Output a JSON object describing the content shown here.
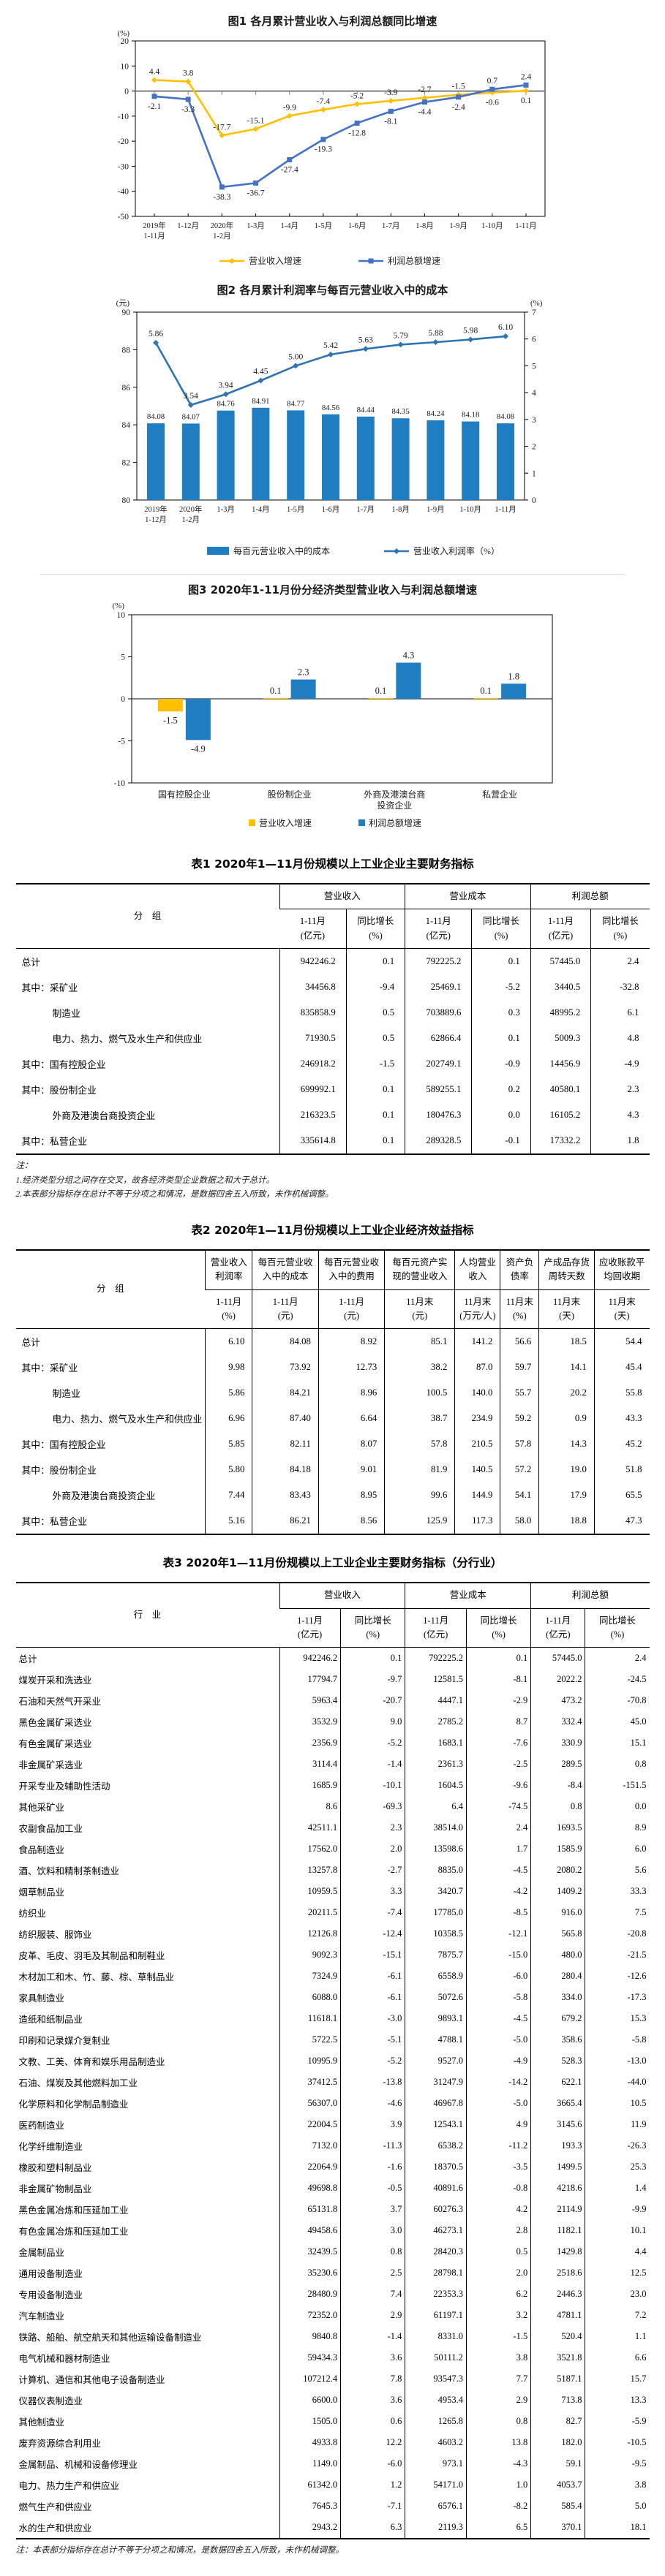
{
  "figure1": {
    "title": "图1 各月累计营业收入与利润总额同比增速",
    "unit_label": "(%)",
    "type": "line",
    "categories": [
      "2019年\n1-11月",
      "1-12月",
      "2020年\n1-2月",
      "1-3月",
      "1-4月",
      "1-5月",
      "1-6月",
      "1-7月",
      "1-8月",
      "1-9月",
      "1-10月",
      "1-11月"
    ],
    "yticks": [
      20,
      10,
      0,
      -10,
      -20,
      -30,
      -40,
      -50
    ],
    "ylim": [
      -50,
      20
    ],
    "series": [
      {
        "name": "营业收入增速",
        "color": "#FFC000",
        "marker": "diamond",
        "values": [
          4.4,
          3.8,
          -17.7,
          -15.1,
          -9.9,
          -7.4,
          -5.2,
          -3.9,
          -2.7,
          -1.5,
          -0.6,
          0.1
        ]
      },
      {
        "name": "利润总额增速",
        "color": "#4472C4",
        "marker": "square",
        "values": [
          -2.1,
          -3.3,
          -38.3,
          -36.7,
          -27.4,
          -19.3,
          -12.8,
          -8.1,
          -4.4,
          -2.4,
          0.7,
          2.4
        ]
      }
    ]
  },
  "figure2": {
    "title": "图2 各月累计利润率与每百元营业收入中的成本",
    "left_unit": "(元)",
    "right_unit": "(%)",
    "type": "bar+line",
    "categories": [
      "2019年\n1-12月",
      "2020年\n1-2月",
      "1-3月",
      "1-4月",
      "1-5月",
      "1-6月",
      "1-7月",
      "1-8月",
      "1-9月",
      "1-10月",
      "1-11月"
    ],
    "left_ticks": [
      90,
      88,
      86,
      84,
      82,
      80
    ],
    "right_ticks": [
      7,
      6,
      5,
      4,
      3,
      2,
      1,
      0
    ],
    "bar_series": {
      "name": "每百元营业收入中的成本",
      "color": "#1F7EC2",
      "values": [
        84.08,
        84.07,
        84.76,
        84.91,
        84.77,
        84.56,
        84.44,
        84.35,
        84.24,
        84.18,
        84.08
      ]
    },
    "line_series": {
      "name": "营业收入利润率（%）",
      "color": "#2E74B5",
      "values": [
        5.86,
        3.54,
        3.94,
        4.45,
        5.0,
        5.42,
        5.63,
        5.79,
        5.88,
        5.98,
        6.1
      ],
      "labels": [
        "5.86",
        "3.54",
        "3.94",
        "4.45",
        "5.00",
        "5.42",
        "5.63",
        "5.79",
        "5.88",
        "5.98",
        "6.10"
      ]
    }
  },
  "figure3": {
    "title": "图3 2020年1-11月份分经济类型营业收入与利润总额增速",
    "unit_label": "(%)",
    "type": "grouped-bar",
    "categories": [
      "国有控股企业",
      "股份制企业",
      "外商及港澳台商\n投资企业",
      "私营企业"
    ],
    "yticks": [
      10,
      5,
      0,
      -5,
      -10
    ],
    "series": [
      {
        "name": "营业收入增速",
        "color": "#FFC000",
        "values": [
          -1.5,
          0.1,
          0.1,
          0.1
        ]
      },
      {
        "name": "利润总额增速",
        "color": "#1F7EC2",
        "values": [
          -4.9,
          2.3,
          4.3,
          1.8
        ]
      }
    ]
  },
  "table1": {
    "title": "表1 2020年1—11月份规模以上工业企业主要财务指标",
    "corner_label": "分　组",
    "columns": [
      {
        "label": "营业收入",
        "subs": [
          "1-11月\n(亿元)",
          "同比增长\n(%)"
        ]
      },
      {
        "label": "营业成本",
        "subs": [
          "1-11月\n(亿元)",
          "同比增长\n(%)"
        ]
      },
      {
        "label": "利润总额",
        "subs": [
          "1-11月\n(亿元)",
          "同比增长\n(%)"
        ]
      }
    ],
    "rows": [
      {
        "label": "总计",
        "indent": 0,
        "values": [
          "942246.2",
          "0.1",
          "792225.2",
          "0.1",
          "57445.0",
          "2.4"
        ]
      },
      {
        "label": "其中：采矿业",
        "indent": 0,
        "values": [
          "34456.8",
          "-9.4",
          "25469.1",
          "-5.2",
          "3440.5",
          "-32.8"
        ]
      },
      {
        "label": "制造业",
        "indent": 1,
        "values": [
          "835858.9",
          "0.5",
          "703889.6",
          "0.3",
          "48995.2",
          "6.1"
        ]
      },
      {
        "label": "电力、热力、燃气及水生产和供应业",
        "indent": 1,
        "values": [
          "71930.5",
          "0.5",
          "62866.4",
          "0.1",
          "5009.3",
          "4.8"
        ]
      },
      {
        "label": "其中：国有控股企业",
        "indent": 0,
        "values": [
          "246918.2",
          "-1.5",
          "202749.1",
          "-0.9",
          "14456.9",
          "-4.9"
        ]
      },
      {
        "label": "其中：股份制企业",
        "indent": 0,
        "values": [
          "699992.1",
          "0.1",
          "589255.1",
          "0.2",
          "40580.1",
          "2.3"
        ]
      },
      {
        "label": "外商及港澳台商投资企业",
        "indent": 1,
        "values": [
          "216323.5",
          "0.1",
          "180476.3",
          "0.0",
          "16105.2",
          "4.3"
        ]
      },
      {
        "label": "其中：私营企业",
        "indent": 0,
        "values": [
          "335614.8",
          "0.1",
          "289328.5",
          "-0.1",
          "17332.2",
          "1.8"
        ]
      }
    ],
    "notes": [
      "注：",
      "1.经济类型分组之间存在交叉，故各经济类型企业数据之和大于总计。",
      "2.本表部分指标存在总计不等于分项之和情况，是数据四舍五入所致，未作机械调整。"
    ]
  },
  "table2": {
    "title": "表2 2020年1—11月份规模以上工业企业经济效益指标",
    "corner_label": "分　组",
    "columns": [
      {
        "label": "营业收入利润率",
        "subs": [
          "1-11月\n(%)"
        ]
      },
      {
        "label": "每百元营业收入中的成本",
        "subs": [
          "1-11月\n(元)"
        ]
      },
      {
        "label": "每百元营业收入中的费用",
        "subs": [
          "1-11月\n(元)"
        ]
      },
      {
        "label": "每百元资产实现的营业收入",
        "subs": [
          "11月末\n(元)"
        ]
      },
      {
        "label": "人均营业收入",
        "subs": [
          "11月末\n(万元/人)"
        ]
      },
      {
        "label": "资产负债率",
        "subs": [
          "11月末\n(%)"
        ]
      },
      {
        "label": "产成品存货周转天数",
        "subs": [
          "11月末\n(天)"
        ]
      },
      {
        "label": "应收账款平均回收期",
        "subs": [
          "11月末\n(天)"
        ]
      }
    ],
    "rows": [
      {
        "label": "总计",
        "indent": 0,
        "values": [
          "6.10",
          "84.08",
          "8.92",
          "85.1",
          "141.2",
          "56.6",
          "18.5",
          "54.4"
        ]
      },
      {
        "label": "其中：采矿业",
        "indent": 0,
        "values": [
          "9.98",
          "73.92",
          "12.73",
          "38.2",
          "87.0",
          "59.7",
          "14.1",
          "45.4"
        ]
      },
      {
        "label": "制造业",
        "indent": 1,
        "values": [
          "5.86",
          "84.21",
          "8.96",
          "100.5",
          "140.0",
          "55.7",
          "20.2",
          "55.8"
        ]
      },
      {
        "label": "电力、热力、燃气及水生产和供应业",
        "indent": 1,
        "values": [
          "6.96",
          "87.40",
          "6.64",
          "38.7",
          "234.9",
          "59.2",
          "0.9",
          "43.3"
        ]
      },
      {
        "label": "其中：国有控股企业",
        "indent": 0,
        "values": [
          "5.85",
          "82.11",
          "8.07",
          "57.8",
          "210.5",
          "57.8",
          "14.3",
          "45.2"
        ]
      },
      {
        "label": "其中：股份制企业",
        "indent": 0,
        "values": [
          "5.80",
          "84.18",
          "9.01",
          "81.9",
          "140.5",
          "57.2",
          "19.0",
          "51.8"
        ]
      },
      {
        "label": "外商及港澳台商投资企业",
        "indent": 1,
        "values": [
          "7.44",
          "83.43",
          "8.95",
          "99.6",
          "144.9",
          "54.1",
          "17.9",
          "65.5"
        ]
      },
      {
        "label": "其中：私营企业",
        "indent": 0,
        "values": [
          "5.16",
          "86.21",
          "8.56",
          "125.9",
          "117.3",
          "58.0",
          "18.8",
          "47.3"
        ]
      }
    ]
  },
  "table3": {
    "title": "表3 2020年1—11月份规模以上工业企业主要财务指标（分行业）",
    "corner_label": "行　业",
    "columns": [
      {
        "label": "营业收入",
        "subs": [
          "1-11月\n(亿元)",
          "同比增长\n(%)"
        ]
      },
      {
        "label": "营业成本",
        "subs": [
          "1-11月\n(亿元)",
          "同比增长\n(%)"
        ]
      },
      {
        "label": "利润总额",
        "subs": [
          "1-11月\n(亿元)",
          "同比增长\n(%)"
        ]
      }
    ],
    "rows": [
      {
        "label": "总计",
        "indent": 0,
        "values": [
          "942246.2",
          "0.1",
          "792225.2",
          "0.1",
          "57445.0",
          "2.4"
        ]
      },
      {
        "label": "煤炭开采和洗选业",
        "indent": 2,
        "values": [
          "17794.7",
          "-9.7",
          "12581.5",
          "-8.1",
          "2022.2",
          "-24.5"
        ]
      },
      {
        "label": "石油和天然气开采业",
        "indent": 2,
        "values": [
          "5963.4",
          "-20.7",
          "4447.1",
          "-2.9",
          "473.2",
          "-70.8"
        ]
      },
      {
        "label": "黑色金属矿采选业",
        "indent": 2,
        "values": [
          "3532.9",
          "9.0",
          "2785.2",
          "8.7",
          "332.4",
          "45.0"
        ]
      },
      {
        "label": "有色金属矿采选业",
        "indent": 2,
        "values": [
          "2356.9",
          "-5.2",
          "1683.1",
          "-7.6",
          "330.9",
          "15.1"
        ]
      },
      {
        "label": "非金属矿采选业",
        "indent": 2,
        "values": [
          "3114.4",
          "-1.4",
          "2361.3",
          "-2.5",
          "289.5",
          "0.8"
        ]
      },
      {
        "label": "开采专业及辅助性活动",
        "indent": 2,
        "values": [
          "1685.9",
          "-10.1",
          "1604.5",
          "-9.6",
          "-8.4",
          "-151.5"
        ]
      },
      {
        "label": "其他采矿业",
        "indent": 2,
        "values": [
          "8.6",
          "-69.3",
          "6.4",
          "-74.5",
          "0.8",
          "0.0"
        ]
      },
      {
        "label": "农副食品加工业",
        "indent": 2,
        "values": [
          "42511.1",
          "2.3",
          "38514.0",
          "2.4",
          "1693.5",
          "8.9"
        ]
      },
      {
        "label": "食品制造业",
        "indent": 2,
        "values": [
          "17562.0",
          "2.0",
          "13598.6",
          "1.7",
          "1585.9",
          "6.0"
        ]
      },
      {
        "label": "酒、饮料和精制茶制造业",
        "indent": 2,
        "values": [
          "13257.8",
          "-2.7",
          "8835.0",
          "-4.5",
          "2080.2",
          "5.6"
        ]
      },
      {
        "label": "烟草制品业",
        "indent": 2,
        "values": [
          "10959.5",
          "3.3",
          "3420.7",
          "-4.2",
          "1409.2",
          "33.3"
        ]
      },
      {
        "label": "纺织业",
        "indent": 2,
        "values": [
          "20211.5",
          "-7.4",
          "17785.0",
          "-8.5",
          "916.0",
          "7.5"
        ]
      },
      {
        "label": "纺织服装、服饰业",
        "indent": 2,
        "values": [
          "12126.8",
          "-12.4",
          "10358.5",
          "-12.1",
          "565.8",
          "-20.8"
        ]
      },
      {
        "label": "皮革、毛皮、羽毛及其制品和制鞋业",
        "indent": 2,
        "values": [
          "9092.3",
          "-15.1",
          "7875.7",
          "-15.0",
          "480.0",
          "-21.5"
        ]
      },
      {
        "label": "木材加工和木、竹、藤、棕、草制品业",
        "indent": 2,
        "values": [
          "7324.9",
          "-6.1",
          "6558.9",
          "-6.0",
          "280.4",
          "-12.6"
        ]
      },
      {
        "label": "家具制造业",
        "indent": 2,
        "values": [
          "6088.0",
          "-6.1",
          "5072.6",
          "-5.8",
          "334.0",
          "-17.3"
        ]
      },
      {
        "label": "造纸和纸制品业",
        "indent": 2,
        "values": [
          "11618.1",
          "-3.0",
          "9893.1",
          "-4.5",
          "679.2",
          "15.3"
        ]
      },
      {
        "label": "印刷和记录媒介复制业",
        "indent": 2,
        "values": [
          "5722.5",
          "-5.1",
          "4788.1",
          "-5.0",
          "358.6",
          "-5.8"
        ]
      },
      {
        "label": "文教、工美、体育和娱乐用品制造业",
        "indent": 2,
        "values": [
          "10995.9",
          "-5.2",
          "9527.0",
          "-4.9",
          "528.3",
          "-13.0"
        ]
      },
      {
        "label": "石油、煤炭及其他燃料加工业",
        "indent": 2,
        "values": [
          "37412.5",
          "-13.8",
          "31247.9",
          "-14.2",
          "622.1",
          "-44.0"
        ]
      },
      {
        "label": "化学原料和化学制品制造业",
        "indent": 2,
        "values": [
          "56307.0",
          "-4.6",
          "46967.8",
          "-5.0",
          "3665.4",
          "10.5"
        ]
      },
      {
        "label": "医药制造业",
        "indent": 2,
        "values": [
          "22004.5",
          "3.9",
          "12543.1",
          "4.9",
          "3145.6",
          "11.9"
        ]
      },
      {
        "label": "化学纤维制造业",
        "indent": 2,
        "values": [
          "7132.0",
          "-11.3",
          "6538.2",
          "-11.2",
          "193.3",
          "-26.3"
        ]
      },
      {
        "label": "橡胶和塑料制品业",
        "indent": 2,
        "values": [
          "22064.9",
          "-1.6",
          "18370.5",
          "-3.5",
          "1499.5",
          "25.3"
        ]
      },
      {
        "label": "非金属矿物制品业",
        "indent": 2,
        "values": [
          "49698.8",
          "-0.5",
          "40891.6",
          "-0.8",
          "4218.6",
          "1.4"
        ]
      },
      {
        "label": "黑色金属冶炼和压延加工业",
        "indent": 2,
        "values": [
          "65131.8",
          "3.7",
          "60276.3",
          "4.2",
          "2114.9",
          "-9.9"
        ]
      },
      {
        "label": "有色金属冶炼和压延加工业",
        "indent": 2,
        "values": [
          "49458.6",
          "3.0",
          "46273.1",
          "2.8",
          "1182.1",
          "10.1"
        ]
      },
      {
        "label": "金属制品业",
        "indent": 2,
        "values": [
          "32439.5",
          "0.8",
          "28420.3",
          "0.5",
          "1429.8",
          "4.4"
        ]
      },
      {
        "label": "通用设备制造业",
        "indent": 2,
        "values": [
          "35230.6",
          "2.5",
          "28798.1",
          "2.0",
          "2518.6",
          "12.5"
        ]
      },
      {
        "label": "专用设备制造业",
        "indent": 2,
        "values": [
          "28480.9",
          "7.4",
          "22353.3",
          "6.2",
          "2446.3",
          "23.0"
        ]
      },
      {
        "label": "汽车制造业",
        "indent": 2,
        "values": [
          "72352.0",
          "2.9",
          "61197.1",
          "3.2",
          "4781.1",
          "7.2"
        ]
      },
      {
        "label": "铁路、船舶、航空航天和其他运输设备制造业",
        "indent": 2,
        "values": [
          "9840.8",
          "-1.4",
          "8331.0",
          "-1.5",
          "520.4",
          "1.1"
        ]
      },
      {
        "label": "电气机械和器材制造业",
        "indent": 2,
        "values": [
          "59434.3",
          "3.6",
          "50111.2",
          "3.8",
          "3521.8",
          "6.6"
        ]
      },
      {
        "label": "计算机、通信和其他电子设备制造业",
        "indent": 2,
        "values": [
          "107212.4",
          "7.8",
          "93547.3",
          "7.7",
          "5187.1",
          "15.7"
        ]
      },
      {
        "label": "仪器仪表制造业",
        "indent": 2,
        "values": [
          "6600.0",
          "3.6",
          "4953.4",
          "2.9",
          "713.8",
          "13.3"
        ]
      },
      {
        "label": "其他制造业",
        "indent": 2,
        "values": [
          "1505.0",
          "0.6",
          "1265.8",
          "0.8",
          "82.7",
          "-5.9"
        ]
      },
      {
        "label": "废弃资源综合利用业",
        "indent": 2,
        "values": [
          "4933.8",
          "12.2",
          "4603.2",
          "13.8",
          "182.0",
          "-10.5"
        ]
      },
      {
        "label": "金属制品、机械和设备修理业",
        "indent": 2,
        "values": [
          "1149.0",
          "-6.0",
          "973.1",
          "-4.3",
          "59.1",
          "-9.5"
        ]
      },
      {
        "label": "电力、热力生产和供应业",
        "indent": 2,
        "values": [
          "61342.0",
          "1.2",
          "54171.0",
          "1.0",
          "4053.7",
          "3.8"
        ]
      },
      {
        "label": "燃气生产和供应业",
        "indent": 2,
        "values": [
          "7645.3",
          "-7.1",
          "6576.1",
          "-8.2",
          "585.4",
          "5.0"
        ]
      },
      {
        "label": "水的生产和供应业",
        "indent": 2,
        "values": [
          "2943.2",
          "6.3",
          "2119.3",
          "6.5",
          "370.1",
          "18.1"
        ]
      }
    ],
    "note": "注：本表部分指标存在总计不等于分项之和情况，是数据四舍五入所致，未作机械调整。"
  }
}
